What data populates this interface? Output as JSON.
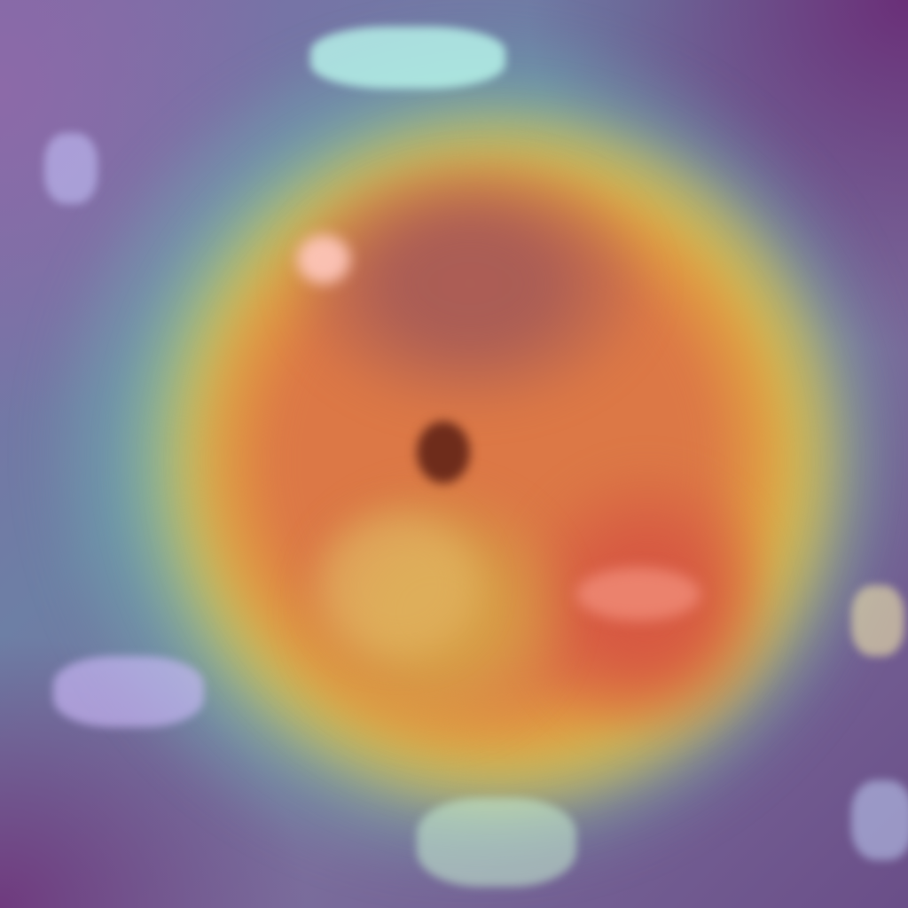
{
  "image": {
    "kind": "heatmap-overlay",
    "palette": {
      "background_purple": "#6a2f78",
      "teal": "#70c4b2",
      "yellow": "#e2b040",
      "orange": "#dc7846",
      "red_core": "#d65642"
    }
  }
}
